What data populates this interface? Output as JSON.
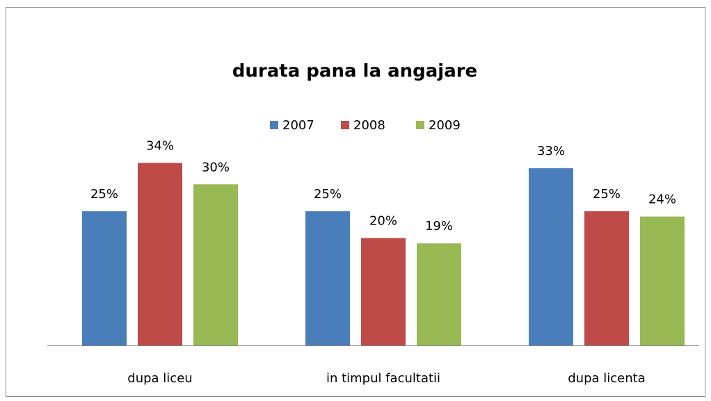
{
  "chart_data": {
    "type": "bar",
    "title": "durata pana la angajare",
    "categories": [
      "dupa liceu",
      "in timpul facultatii",
      "dupa licenta"
    ],
    "series": [
      {
        "name": "2007",
        "color": "#4a7ebb",
        "values": [
          25,
          25,
          33
        ],
        "value_labels": [
          "25%",
          "25%",
          "33%"
        ]
      },
      {
        "name": "2008",
        "color": "#be4b48",
        "values": [
          34,
          20,
          25
        ],
        "value_labels": [
          "34%",
          "20%",
          "25%"
        ]
      },
      {
        "name": "2009",
        "color": "#98b954",
        "values": [
          30,
          19,
          24
        ],
        "value_labels": [
          "30%",
          "19%",
          "24%"
        ]
      }
    ],
    "ylim": [
      0,
      40
    ],
    "legend": "top"
  }
}
